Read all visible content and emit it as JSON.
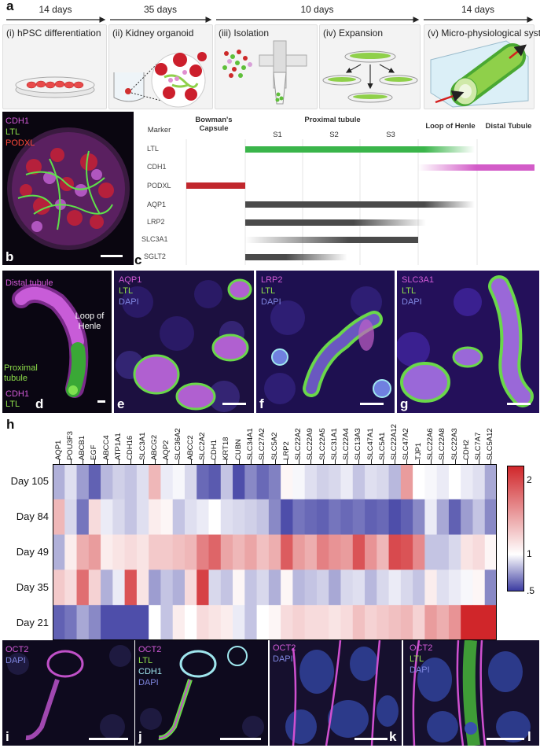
{
  "panel_labels": {
    "a": "a",
    "b": "b",
    "c": "c",
    "d": "d",
    "e": "e",
    "f": "f",
    "g": "g",
    "h": "h",
    "i": "i",
    "j": "j",
    "k": "k",
    "l": "l"
  },
  "timeline": {
    "durations": [
      "14 days",
      "35 days",
      "10 days",
      "14 days"
    ],
    "steps": [
      "(i) hPSC differentiation",
      "(ii) Kidney organoid",
      "(iii) Isolation",
      "(iv) Expansion",
      "(v) Micro-physiological system"
    ]
  },
  "panel_b": {
    "stains": [
      "CDH1",
      "LTL",
      "PODXL"
    ]
  },
  "panel_c": {
    "col_marker": "Marker",
    "col_bowman": "Bowman's Capsule",
    "col_proximal": "Proximal tubule",
    "segments": [
      "S1",
      "S2",
      "S3"
    ],
    "col_henle": "Loop of Henle",
    "col_distal": "Distal Tubule",
    "markers": [
      "LTL",
      "CDH1",
      "PODXL",
      "AQP1",
      "LRP2",
      "SLC3A1",
      "SGLT2"
    ]
  },
  "panel_d": {
    "stains": [
      "CDH1",
      "LTL"
    ],
    "annotations": [
      "Distal tubule",
      "Loop of Henle",
      "Proximal tubule"
    ]
  },
  "panel_e": {
    "stains": [
      "AQP1",
      "LTL",
      "DAPI"
    ]
  },
  "panel_f": {
    "stains": [
      "LRP2",
      "LTL",
      "DAPI"
    ]
  },
  "panel_g": {
    "stains": [
      "SLC3A1",
      "LTL",
      "DAPI"
    ]
  },
  "panel_i": {
    "stains": [
      "OCT2",
      "DAPI"
    ]
  },
  "panel_j": {
    "stains": [
      "OCT2",
      "LTL",
      "CDH1",
      "DAPI"
    ]
  },
  "panel_k": {
    "stains": [
      "OCT2",
      "DAPI"
    ]
  },
  "panel_l": {
    "stains": [
      "OCT2",
      "LTL",
      "DAPI"
    ]
  },
  "chart_data": {
    "type": "heatmap",
    "title": "",
    "categories": [
      "AQP1",
      "POU3F3",
      "ABCB1",
      "EGF",
      "ABCC4",
      "ATP1A1",
      "CDH16",
      "SLC3A1",
      "ABCG2",
      "AQP2",
      "SLC36A2",
      "ABCC2",
      "SLC2A2",
      "CDH1",
      "KRT18",
      "CUBN",
      "SLC34A1",
      "SLC27A2",
      "SLC5A2",
      "LRP2",
      "SLC22A2",
      "SLC22A9",
      "SLC22A5",
      "SLC31A1",
      "SLC22A4",
      "SLC13A3",
      "SLC47A1",
      "SLC5A1",
      "SLC22A12",
      "SLC47A2",
      "TJP1",
      "SLC22A6",
      "SLC22A8",
      "SLC22A3",
      "CDH2",
      "SLC7A7",
      "SLC5A12"
    ],
    "rows": [
      "Day 105",
      "Day 84",
      "Day 49",
      "Day 35",
      "Day 21"
    ],
    "colorbar": {
      "min": 0.5,
      "max": 2.2,
      "ticks": [
        "2",
        "1",
        ".5"
      ],
      "tick_values": [
        2,
        1,
        0.5
      ],
      "low_color": "#3a3aa0",
      "mid_color": "#ffffff",
      "high_color": "#d0262a"
    },
    "values": [
      [
        0.8,
        0.92,
        0.75,
        0.6,
        0.82,
        0.88,
        0.85,
        0.92,
        1.4,
        0.95,
        0.98,
        0.9,
        0.62,
        0.58,
        0.85,
        0.55,
        0.7,
        0.62,
        0.68,
        1.05,
        0.98,
        0.92,
        0.88,
        0.9,
        0.95,
        0.85,
        0.92,
        0.9,
        0.82,
        1.55,
        1.0,
        0.98,
        0.95,
        1.0,
        0.95,
        0.92,
        0.78
      ],
      [
        1.4,
        0.9,
        0.65,
        1.2,
        0.95,
        0.9,
        0.85,
        0.92,
        1.1,
        1.05,
        0.85,
        0.92,
        0.95,
        1.0,
        0.92,
        0.9,
        0.88,
        0.85,
        0.7,
        0.55,
        0.65,
        0.62,
        0.6,
        0.65,
        0.62,
        0.65,
        0.6,
        0.62,
        0.55,
        0.6,
        0.7,
        0.95,
        0.78,
        0.6,
        0.75,
        0.85,
        0.7
      ],
      [
        0.8,
        1.1,
        1.45,
        1.55,
        1.1,
        1.15,
        1.2,
        1.15,
        1.3,
        1.3,
        1.35,
        1.4,
        1.7,
        1.85,
        1.5,
        1.4,
        1.5,
        1.35,
        1.45,
        1.9,
        1.55,
        1.45,
        1.7,
        1.6,
        1.55,
        1.95,
        1.6,
        1.4,
        2.0,
        1.95,
        1.65,
        0.85,
        0.85,
        0.9,
        1.15,
        1.2,
        1.05
      ],
      [
        1.3,
        1.2,
        1.8,
        1.25,
        0.8,
        0.95,
        1.95,
        1.15,
        0.75,
        0.85,
        0.8,
        1.2,
        2.05,
        0.9,
        0.85,
        1.05,
        0.85,
        0.9,
        0.8,
        1.05,
        0.82,
        0.85,
        0.88,
        0.78,
        0.9,
        0.92,
        0.82,
        0.9,
        0.95,
        0.9,
        0.85,
        1.1,
        0.92,
        0.95,
        0.98,
        1.05,
        0.7
      ],
      [
        0.6,
        0.65,
        0.78,
        0.7,
        0.55,
        0.55,
        0.55,
        0.55,
        1.0,
        0.85,
        1.1,
        1.0,
        1.2,
        1.15,
        1.1,
        0.95,
        0.85,
        1.0,
        1.05,
        1.2,
        1.25,
        1.2,
        1.2,
        1.15,
        1.2,
        1.35,
        1.25,
        1.3,
        1.35,
        1.4,
        1.25,
        1.55,
        1.45,
        1.6,
        2.2,
        2.2,
        2.2
      ]
    ]
  },
  "colors": {
    "magenta": "#d15ad6",
    "green": "#8fe04a",
    "red": "#ff4a3a",
    "blue": "#7f86e0",
    "cyan": "#9fe6ee",
    "gray_bar": "#4a4a4a"
  }
}
